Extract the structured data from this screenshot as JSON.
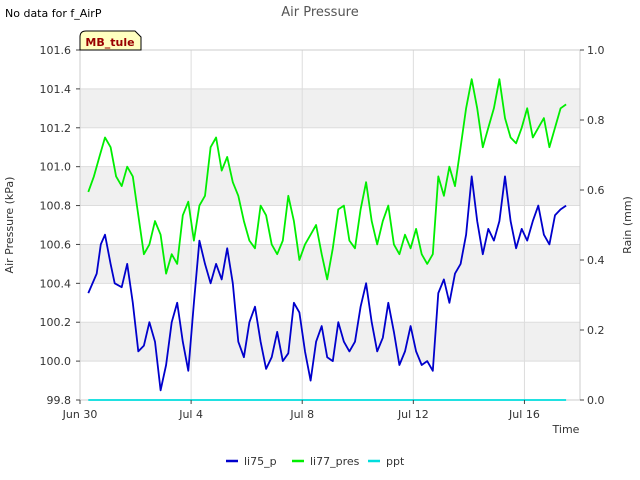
{
  "corner_note": "No data for f_AirP",
  "chart_data": {
    "type": "line",
    "title": "Air Pressure",
    "xlabel": "Time",
    "ylabel": "Air Pressure (kPa)",
    "ylabel_right": "Rain (mm)",
    "station_badge": "MB_tule",
    "x_domain_days": [
      0,
      18
    ],
    "ylim": [
      99.8,
      101.6
    ],
    "ylim_right": [
      0.0,
      1.0
    ],
    "grid": true,
    "legend_position": "bottom-center",
    "x_ticks": [
      {
        "day": 0,
        "label": "Jun 30"
      },
      {
        "day": 4,
        "label": "Jul 4"
      },
      {
        "day": 8,
        "label": "Jul 8"
      },
      {
        "day": 12,
        "label": "Jul 12"
      },
      {
        "day": 16,
        "label": "Jul 16"
      }
    ],
    "y_ticks": [
      "99.8",
      "100.0",
      "100.2",
      "100.4",
      "100.6",
      "100.8",
      "101.0",
      "101.2",
      "101.4",
      "101.6"
    ],
    "y_ticks_right": [
      "0.0",
      "0.2",
      "0.4",
      "0.6",
      "0.8",
      "1.0"
    ],
    "series": [
      {
        "name": "li75_p",
        "color": "#0000cc",
        "axis": "left",
        "x": [
          0.3,
          0.6,
          0.75,
          0.9,
          1.1,
          1.25,
          1.5,
          1.7,
          1.9,
          2.1,
          2.3,
          2.5,
          2.7,
          2.9,
          3.1,
          3.3,
          3.5,
          3.7,
          3.9,
          4.1,
          4.3,
          4.5,
          4.7,
          4.9,
          5.1,
          5.3,
          5.5,
          5.7,
          5.9,
          6.1,
          6.3,
          6.5,
          6.7,
          6.9,
          7.1,
          7.3,
          7.5,
          7.7,
          7.9,
          8.1,
          8.3,
          8.5,
          8.7,
          8.9,
          9.1,
          9.3,
          9.5,
          9.7,
          9.9,
          10.1,
          10.3,
          10.5,
          10.7,
          10.9,
          11.1,
          11.3,
          11.5,
          11.7,
          11.9,
          12.1,
          12.3,
          12.5,
          12.7,
          12.9,
          13.1,
          13.3,
          13.5,
          13.7,
          13.9,
          14.1,
          14.3,
          14.5,
          14.7,
          14.9,
          15.1,
          15.3,
          15.5,
          15.7,
          15.9,
          16.1,
          16.3,
          16.5,
          16.7,
          16.9,
          17.1,
          17.3,
          17.5
        ],
        "values": [
          100.35,
          100.45,
          100.6,
          100.65,
          100.5,
          100.4,
          100.38,
          100.5,
          100.3,
          100.05,
          100.08,
          100.2,
          100.1,
          99.85,
          99.98,
          100.2,
          100.3,
          100.1,
          99.95,
          100.3,
          100.62,
          100.5,
          100.4,
          100.5,
          100.42,
          100.58,
          100.4,
          100.1,
          100.02,
          100.2,
          100.28,
          100.1,
          99.96,
          100.02,
          100.15,
          100.0,
          100.04,
          100.3,
          100.25,
          100.05,
          99.9,
          100.1,
          100.18,
          100.02,
          100.0,
          100.2,
          100.1,
          100.05,
          100.1,
          100.28,
          100.4,
          100.2,
          100.05,
          100.12,
          100.3,
          100.15,
          99.98,
          100.05,
          100.18,
          100.05,
          99.98,
          100.0,
          99.95,
          100.35,
          100.42,
          100.3,
          100.45,
          100.5,
          100.65,
          100.95,
          100.72,
          100.55,
          100.68,
          100.62,
          100.72,
          100.95,
          100.72,
          100.58,
          100.68,
          100.62,
          100.72,
          100.8,
          100.65,
          100.6,
          100.75,
          100.78,
          100.8
        ]
      },
      {
        "name": "li77_pres",
        "color": "#00ee00",
        "axis": "left",
        "x": [
          0.3,
          0.5,
          0.7,
          0.9,
          1.1,
          1.3,
          1.5,
          1.7,
          1.9,
          2.1,
          2.3,
          2.5,
          2.7,
          2.9,
          3.1,
          3.3,
          3.5,
          3.7,
          3.9,
          4.1,
          4.3,
          4.5,
          4.7,
          4.9,
          5.1,
          5.3,
          5.5,
          5.7,
          5.9,
          6.1,
          6.3,
          6.5,
          6.7,
          6.9,
          7.1,
          7.3,
          7.5,
          7.7,
          7.9,
          8.1,
          8.3,
          8.5,
          8.7,
          8.9,
          9.1,
          9.3,
          9.5,
          9.7,
          9.9,
          10.1,
          10.3,
          10.5,
          10.7,
          10.9,
          11.1,
          11.3,
          11.5,
          11.7,
          11.9,
          12.1,
          12.3,
          12.5,
          12.7,
          12.9,
          13.1,
          13.3,
          13.5,
          13.7,
          13.9,
          14.1,
          14.3,
          14.5,
          14.7,
          14.9,
          15.1,
          15.3,
          15.5,
          15.7,
          15.9,
          16.1,
          16.3,
          16.5,
          16.7,
          16.9,
          17.1,
          17.3,
          17.5
        ],
        "values": [
          100.87,
          100.95,
          101.05,
          101.15,
          101.1,
          100.95,
          100.9,
          101.0,
          100.95,
          100.75,
          100.55,
          100.6,
          100.72,
          100.65,
          100.45,
          100.55,
          100.5,
          100.75,
          100.82,
          100.62,
          100.8,
          100.85,
          101.1,
          101.15,
          100.98,
          101.05,
          100.92,
          100.85,
          100.72,
          100.62,
          100.58,
          100.8,
          100.75,
          100.6,
          100.55,
          100.62,
          100.85,
          100.72,
          100.52,
          100.6,
          100.65,
          100.7,
          100.55,
          100.42,
          100.58,
          100.78,
          100.8,
          100.62,
          100.58,
          100.78,
          100.92,
          100.72,
          100.6,
          100.72,
          100.8,
          100.6,
          100.55,
          100.65,
          100.58,
          100.68,
          100.55,
          100.5,
          100.55,
          100.95,
          100.85,
          101.0,
          100.9,
          101.1,
          101.3,
          101.45,
          101.3,
          101.1,
          101.2,
          101.3,
          101.45,
          101.25,
          101.15,
          101.12,
          101.2,
          101.3,
          101.15,
          101.2,
          101.25,
          101.1,
          101.2,
          101.3,
          101.32
        ]
      },
      {
        "name": "ppt",
        "color": "#00dddd",
        "axis": "right",
        "x": [
          0.3,
          17.5
        ],
        "values": [
          0.0,
          0.0
        ]
      }
    ]
  }
}
